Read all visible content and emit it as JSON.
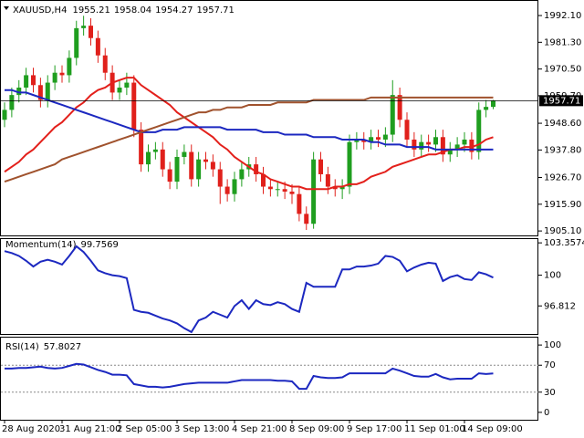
{
  "chart_data": [
    {
      "type": "candlestick",
      "title": "XAUUSD,H4",
      "categories": [
        "28 Aug 2020",
        null,
        null,
        null,
        null,
        null,
        null,
        null,
        "31 Aug 21:00",
        null,
        null,
        null,
        null,
        null,
        null,
        null,
        "2 Sep 05:00",
        null,
        null,
        null,
        null,
        null,
        null,
        null,
        "3 Sep 13:00",
        null,
        null,
        null,
        null,
        null,
        null,
        null,
        "4 Sep 21:00",
        null,
        null,
        null,
        null,
        null,
        null,
        null,
        "8 Sep 09:00",
        null,
        null,
        null,
        null,
        null,
        null,
        null,
        "9 Sep 17:00",
        null,
        null,
        null,
        null,
        null,
        null,
        null,
        "11 Sep 01:00",
        null,
        null,
        null,
        null,
        null,
        null,
        null,
        "14 Sep 09:00",
        null,
        null,
        null,
        null
      ],
      "open": [
        1950,
        1954,
        1960,
        1963,
        1968,
        1964,
        1958,
        1965,
        1969,
        1968,
        1975,
        1987,
        1988,
        1983,
        1976,
        1969,
        1961,
        1963,
        1965,
        1946,
        1932,
        1937,
        1938,
        1930,
        1925,
        1935,
        1937,
        1926,
        1934,
        1933,
        1930,
        1923,
        1920,
        1926,
        1930,
        1932,
        1928,
        1923,
        1922,
        1922,
        1921,
        1920,
        1912,
        1908,
        1934,
        1928,
        1923,
        1922,
        1923,
        1941,
        1942,
        1941,
        1943,
        1942,
        1944,
        1960,
        1950,
        1942,
        1938,
        1941,
        1940,
        1943,
        1936,
        1938,
        1940,
        1942,
        1937,
        1954,
        1955.21
      ],
      "high": [
        1957,
        1963,
        1966,
        1971,
        1971,
        1967,
        1968,
        1972,
        1972,
        1978,
        1990,
        1992,
        1991,
        1986,
        1979,
        1972,
        1966,
        1969,
        1968,
        1949,
        1940,
        1941,
        1941,
        1933,
        1938,
        1940,
        1940,
        1937,
        1937,
        1936,
        1933,
        1926,
        1929,
        1933,
        1935,
        1935,
        1931,
        1926,
        1925,
        1925,
        1924,
        1923,
        1915,
        1937,
        1937,
        1931,
        1926,
        1926,
        1944,
        1945,
        1945,
        1946,
        1946,
        1947,
        1966,
        1963,
        1953,
        1945,
        1944,
        1944,
        1946,
        1946,
        1941,
        1943,
        1945,
        1945,
        1957,
        1958,
        1958.04
      ],
      "low": [
        1947,
        1951,
        1957,
        1960,
        1961,
        1955,
        1955,
        1962,
        1965,
        1965,
        1972,
        1984,
        1980,
        1973,
        1966,
        1958,
        1958,
        1960,
        1943,
        1929,
        1929,
        1934,
        1927,
        1922,
        1922,
        1932,
        1923,
        1923,
        1930,
        1927,
        1916,
        1917,
        1917,
        1923,
        1927,
        1925,
        1920,
        1919,
        1919,
        1918,
        1916,
        1909,
        1905.5,
        1906,
        1925,
        1920,
        1919,
        1918,
        1920,
        1938,
        1938,
        1938,
        1939,
        1939,
        1941,
        1947,
        1939,
        1935,
        1935,
        1937,
        1937,
        1933,
        1933,
        1935,
        1937,
        1934,
        1934,
        1951,
        1954.27
      ],
      "close": [
        1954,
        1960,
        1963,
        1968,
        1964,
        1958,
        1965,
        1969,
        1968,
        1975,
        1987,
        1988,
        1983,
        1976,
        1969,
        1961,
        1963,
        1965,
        1946,
        1932,
        1937,
        1938,
        1930,
        1925,
        1935,
        1937,
        1926,
        1934,
        1933,
        1930,
        1923,
        1920,
        1926,
        1930,
        1932,
        1928,
        1923,
        1922,
        1922,
        1921,
        1920,
        1912,
        1908,
        1934,
        1928,
        1923,
        1922,
        1923,
        1941,
        1942,
        1941,
        1943,
        1942,
        1944,
        1960,
        1950,
        1942,
        1938,
        1941,
        1940,
        1943,
        1936,
        1938,
        1940,
        1942,
        1937,
        1954,
        1955.21,
        1957.71
      ],
      "up_color": "#1f9e1f",
      "down_color": "#e0201b",
      "series": [
        {
          "color": "#e3201b",
          "values": [
            1929,
            1931,
            1933,
            1936,
            1938,
            1941,
            1944,
            1947,
            1949,
            1952,
            1955,
            1957,
            1960,
            1962,
            1963,
            1965,
            1966,
            1967,
            1967,
            1964,
            1962,
            1960,
            1958,
            1956,
            1953,
            1951,
            1949,
            1947,
            1945,
            1943,
            1940,
            1938,
            1935,
            1933,
            1931,
            1929,
            1928,
            1926,
            1925,
            1924,
            1923,
            1923,
            1922,
            1922,
            1922,
            1922,
            1923,
            1923,
            1924,
            1924,
            1925,
            1927,
            1928,
            1929,
            1931,
            1932,
            1933,
            1934,
            1935,
            1936,
            1936,
            1937,
            1938,
            1938,
            1939,
            1939,
            1940,
            1942,
            1943
          ]
        },
        {
          "color": "#1c28c0",
          "values": [
            1962,
            1962,
            1961,
            1961,
            1960,
            1959,
            1958,
            1957,
            1956,
            1955,
            1954,
            1953,
            1952,
            1951,
            1950,
            1949,
            1948,
            1947,
            1946,
            1945,
            1945,
            1945,
            1946,
            1946,
            1946,
            1947,
            1947,
            1947,
            1947,
            1947,
            1947,
            1946,
            1946,
            1946,
            1946,
            1946,
            1945,
            1945,
            1945,
            1944,
            1944,
            1944,
            1944,
            1943,
            1943,
            1943,
            1943,
            1942,
            1942,
            1942,
            1942,
            1941,
            1941,
            1940,
            1940,
            1940,
            1939,
            1939,
            1939,
            1939,
            1938,
            1938,
            1938,
            1938,
            1938,
            1938,
            1938,
            1938,
            1938
          ]
        },
        {
          "color": "#a0522d",
          "values": [
            1925,
            1926,
            1927,
            1928,
            1929,
            1930,
            1931,
            1932,
            1934,
            1935,
            1936,
            1937,
            1938,
            1939,
            1940,
            1941,
            1942,
            1943,
            1944,
            1945,
            1946,
            1947,
            1948,
            1949,
            1950,
            1951,
            1952,
            1953,
            1953,
            1954,
            1954,
            1955,
            1955,
            1955,
            1956,
            1956,
            1956,
            1956,
            1957,
            1957,
            1957,
            1957,
            1957,
            1958,
            1958,
            1958,
            1958,
            1958,
            1958,
            1958,
            1958,
            1959,
            1959,
            1959,
            1959,
            1959,
            1959,
            1959,
            1959,
            1959,
            1959,
            1959,
            1959,
            1959,
            1959,
            1959,
            1959,
            1959,
            1959
          ]
        }
      ],
      "ylim": [
        1903.3,
        1996.9
      ],
      "yticks": [
        {
          "value": 1992.1,
          "label": "1992.10"
        },
        {
          "value": 1981.3,
          "label": "1981.30"
        },
        {
          "value": 1970.5,
          "label": "1970.50"
        },
        {
          "value": 1959.7,
          "label": "1959.70"
        },
        {
          "value": 1948.6,
          "label": "1948.60"
        },
        {
          "value": 1937.8,
          "label": "1937.80"
        },
        {
          "value": 1926.7,
          "label": "1926.70"
        },
        {
          "value": 1915.9,
          "label": "1915.90"
        },
        {
          "value": 1905.1,
          "label": "1905.10"
        }
      ]
    },
    {
      "type": "line",
      "title": "Momentum(14)",
      "series": [
        {
          "color": "#1c28c0",
          "values": [
            102.5,
            102.3,
            102.0,
            101.5,
            100.9,
            101.4,
            101.6,
            101.4,
            101.1,
            102.0,
            103.0,
            102.4,
            101.5,
            100.5,
            100.2,
            100.0,
            99.9,
            99.7,
            96.4,
            96.2,
            96.1,
            95.8,
            95.5,
            95.3,
            95.0,
            94.5,
            94.1,
            95.3,
            95.6,
            96.2,
            95.9,
            95.6,
            96.8,
            97.4,
            96.5,
            97.4,
            97.0,
            96.9,
            97.2,
            97.0,
            96.5,
            96.2,
            99.2,
            98.8,
            98.8,
            98.8,
            98.8,
            100.6,
            100.6,
            100.9,
            100.9,
            101.0,
            101.2,
            102.0,
            101.9,
            101.5,
            100.4,
            100.8,
            101.1,
            101.3,
            101.2,
            99.4,
            99.8,
            100.0,
            99.6,
            99.5,
            100.3,
            100.1,
            99.7569
          ]
        }
      ],
      "ylim": [
        93.9,
        103.75
      ],
      "yticks": [
        103.3574,
        100,
        96.812
      ]
    },
    {
      "type": "line",
      "title": "RSI(14)",
      "series": [
        {
          "color": "#1c28c0",
          "values": [
            65,
            65,
            66,
            66,
            67,
            68,
            66,
            65,
            66,
            69,
            72,
            71,
            67,
            63,
            60,
            56,
            56,
            55,
            42,
            40,
            38,
            38,
            37,
            38,
            40,
            42,
            43,
            44,
            44,
            44,
            44,
            44,
            46,
            48,
            48,
            48,
            48,
            48,
            47,
            47,
            46,
            35,
            35,
            54,
            52,
            51,
            51,
            52,
            58,
            58,
            58,
            58,
            58,
            58,
            65,
            62,
            58,
            54,
            53,
            53,
            57,
            52,
            49,
            50,
            50,
            50,
            58,
            57,
            57.8027
          ]
        }
      ],
      "ylim": [
        -11,
        111
      ],
      "yticks": [
        100,
        70,
        30,
        0
      ],
      "grid": true
    }
  ]
}
